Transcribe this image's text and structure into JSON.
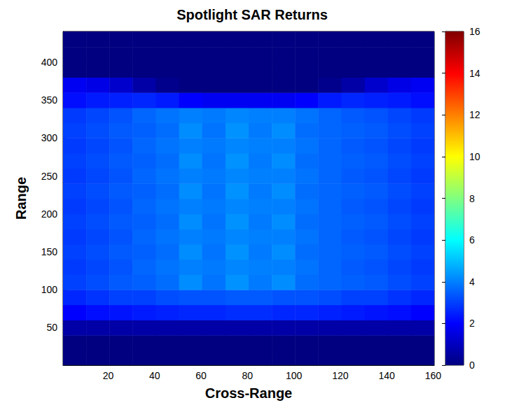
{
  "chart_data": {
    "type": "heatmap",
    "title": "Spotlight SAR Returns",
    "x_label": "Cross-Range",
    "y_label": "Range",
    "xlim": [
      0.5,
      160.5
    ],
    "ylim": [
      0.5,
      440.5
    ],
    "xticks": [
      20,
      40,
      60,
      80,
      100,
      120,
      140,
      160
    ],
    "yticks": [
      50,
      100,
      150,
      200,
      250,
      300,
      350,
      400
    ],
    "x_edges": [
      0.5,
      10.5,
      20.5,
      30.5,
      40.5,
      50.5,
      60.5,
      70.5,
      80.5,
      90.5,
      100.5,
      110.5,
      120.5,
      130.5,
      140.5,
      150.5,
      160.5
    ],
    "y_edges": [
      0.5,
      20,
      40,
      60,
      80,
      100,
      120,
      140,
      160,
      180,
      200,
      220,
      240,
      260,
      280,
      300,
      320,
      340,
      360,
      380,
      400,
      420,
      440.5
    ],
    "cells": [
      [
        0,
        0,
        0,
        0,
        0,
        0,
        0,
        0,
        0,
        0,
        0,
        0,
        0,
        0,
        0,
        0
      ],
      [
        0,
        0,
        0,
        0,
        0,
        0,
        0,
        0,
        0,
        0,
        0,
        0,
        0,
        0,
        0,
        0
      ],
      [
        0.6,
        0.6,
        0.6,
        0.6,
        0.6,
        0.6,
        0.6,
        0.6,
        0.6,
        0.6,
        0.6,
        0.6,
        0.6,
        0.6,
        0.6,
        0.6
      ],
      [
        2.0,
        2.2,
        2.3,
        2.4,
        2.5,
        2.6,
        2.6,
        2.7,
        2.7,
        2.6,
        2.6,
        2.5,
        2.4,
        2.3,
        2.2,
        2.0
      ],
      [
        2.6,
        2.8,
        3.0,
        3.0,
        3.2,
        3.3,
        3.3,
        3.4,
        3.4,
        3.3,
        3.3,
        3.2,
        3.0,
        3.0,
        2.8,
        2.6
      ],
      [
        3.0,
        3.2,
        3.4,
        3.5,
        3.7,
        4.2,
        3.8,
        4.3,
        3.9,
        4.2,
        3.7,
        3.6,
        3.5,
        3.4,
        3.2,
        3.0
      ],
      [
        2.9,
        3.1,
        3.3,
        3.6,
        3.8,
        4.0,
        3.9,
        4.1,
        4.0,
        4.0,
        3.8,
        3.6,
        3.4,
        3.3,
        3.1,
        2.9
      ],
      [
        3.0,
        3.2,
        3.4,
        3.5,
        3.7,
        4.2,
        3.8,
        4.3,
        3.9,
        4.2,
        3.7,
        3.6,
        3.5,
        3.4,
        3.2,
        3.0
      ],
      [
        2.9,
        3.1,
        3.3,
        3.6,
        3.8,
        4.0,
        3.9,
        4.1,
        4.0,
        4.0,
        3.8,
        3.6,
        3.4,
        3.3,
        3.1,
        2.9
      ],
      [
        3.0,
        3.2,
        3.4,
        3.5,
        3.7,
        4.2,
        3.8,
        4.3,
        3.9,
        4.2,
        3.7,
        3.6,
        3.5,
        3.4,
        3.2,
        3.0
      ],
      [
        2.9,
        3.1,
        3.3,
        3.6,
        3.8,
        4.0,
        3.9,
        4.1,
        4.0,
        4.0,
        3.8,
        3.6,
        3.4,
        3.3,
        3.1,
        2.9
      ],
      [
        3.0,
        3.2,
        3.4,
        3.5,
        3.7,
        4.2,
        3.8,
        4.3,
        3.9,
        4.2,
        3.7,
        3.6,
        3.5,
        3.4,
        3.2,
        3.0
      ],
      [
        2.9,
        3.1,
        3.3,
        3.6,
        3.8,
        4.0,
        3.9,
        4.1,
        4.0,
        4.0,
        3.8,
        3.6,
        3.4,
        3.3,
        3.1,
        2.9
      ],
      [
        3.0,
        3.2,
        3.4,
        3.5,
        3.7,
        4.2,
        3.8,
        4.3,
        3.9,
        4.2,
        3.7,
        3.6,
        3.5,
        3.4,
        3.2,
        3.0
      ],
      [
        2.9,
        3.1,
        3.3,
        3.6,
        3.8,
        4.0,
        3.9,
        4.1,
        4.0,
        4.0,
        3.8,
        3.6,
        3.4,
        3.3,
        3.1,
        2.9
      ],
      [
        3.0,
        3.2,
        3.4,
        3.5,
        3.7,
        4.2,
        3.8,
        4.3,
        3.9,
        4.2,
        3.7,
        3.6,
        3.5,
        3.4,
        3.2,
        3.0
      ],
      [
        2.9,
        3.1,
        3.3,
        3.6,
        3.8,
        4.0,
        3.9,
        4.1,
        4.0,
        4.0,
        3.8,
        3.6,
        3.4,
        3.3,
        3.1,
        2.9
      ],
      [
        2.2,
        2.4,
        2.5,
        2.6,
        2.4,
        2.0,
        1.8,
        1.8,
        1.8,
        1.8,
        2.0,
        2.4,
        2.6,
        2.5,
        2.4,
        2.2
      ],
      [
        1.8,
        1.6,
        1.2,
        0.6,
        0.2,
        0,
        0,
        0,
        0,
        0,
        0,
        0.2,
        0.6,
        1.2,
        1.6,
        1.8
      ],
      [
        0,
        0,
        0,
        0,
        0,
        0,
        0,
        0,
        0,
        0,
        0,
        0,
        0,
        0,
        0,
        0
      ],
      [
        0,
        0,
        0,
        0,
        0,
        0,
        0,
        0,
        0,
        0,
        0,
        0,
        0,
        0,
        0,
        0
      ],
      [
        0,
        0,
        0,
        0,
        0,
        0,
        0,
        0,
        0,
        0,
        0,
        0,
        0,
        0,
        0,
        0
      ]
    ],
    "colorbar": {
      "range": [
        0,
        16
      ],
      "ticks": [
        0,
        2,
        4,
        6,
        8,
        10,
        12,
        14,
        16
      ]
    }
  }
}
